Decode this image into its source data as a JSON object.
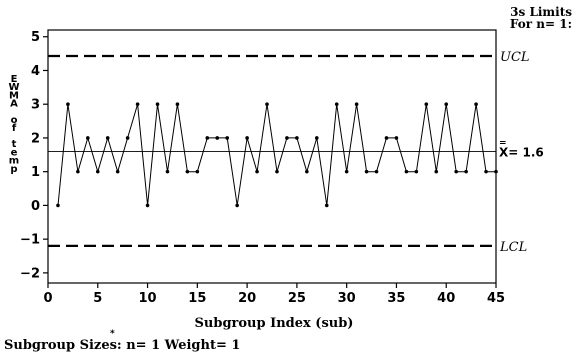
{
  "chart_data": {
    "type": "line",
    "title": "",
    "xlabel": "Subgroup Index (sub)",
    "ylabel_lines": [
      "E",
      "W",
      "M",
      "A",
      "o",
      "f",
      "t",
      "e",
      "m",
      "p"
    ],
    "limits_header": [
      "3s Limits",
      "For n= 1:"
    ],
    "footer": "Subgroup Sizes:  n= 1  Weight= 1",
    "xlim": [
      0,
      45
    ],
    "ylim": [
      -2.3,
      5.2
    ],
    "x_ticks": [
      0,
      5,
      10,
      15,
      20,
      25,
      30,
      35,
      40,
      45
    ],
    "y_ticks": [
      -2,
      -1,
      0,
      1,
      2,
      3,
      4,
      5
    ],
    "x_tick_labels": [
      "0",
      "5",
      "10",
      "15",
      "20",
      "25",
      "30",
      "35",
      "40",
      "45"
    ],
    "y_tick_labels": [
      "−2",
      "−1",
      "0",
      "1",
      "2",
      "3",
      "4",
      "5"
    ],
    "center_line": {
      "value": 1.6,
      "label": "X= 1.6",
      "bar_mark": "="
    },
    "ucl": {
      "value": 4.43,
      "label": "UCL"
    },
    "lcl": {
      "value": -1.2,
      "label": "LCL"
    },
    "x": [
      1,
      2,
      3,
      4,
      5,
      6,
      7,
      8,
      9,
      10,
      11,
      12,
      13,
      14,
      15,
      16,
      17,
      18,
      19,
      20,
      21,
      22,
      23,
      24,
      25,
      26,
      27,
      28,
      29,
      30,
      31,
      32,
      33,
      34,
      35,
      36,
      37,
      38,
      39,
      40,
      41,
      42,
      43,
      44,
      45
    ],
    "values": [
      0,
      3,
      1,
      2,
      1,
      2,
      1,
      2,
      3,
      0,
      3,
      1,
      3,
      1,
      1,
      2,
      2,
      2,
      0,
      2,
      1,
      3,
      1,
      2,
      2,
      1,
      2,
      0,
      3,
      1,
      3,
      1,
      1,
      2,
      2,
      1,
      1,
      3,
      1,
      3,
      1,
      1,
      3,
      1,
      1
    ],
    "grid": false
  }
}
